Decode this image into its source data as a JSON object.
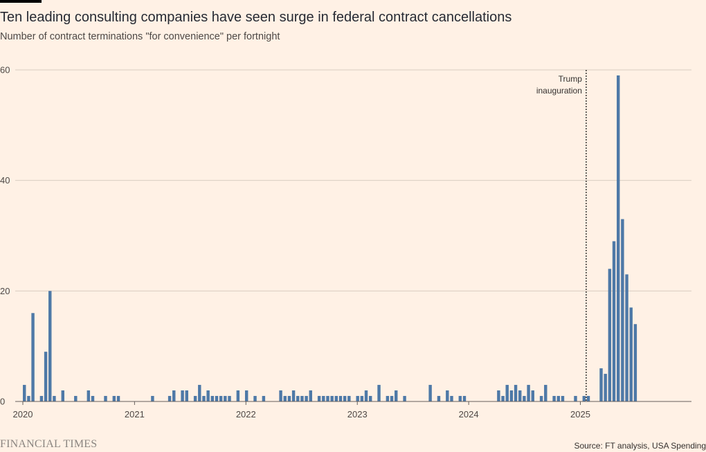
{
  "header": {
    "title": "Ten leading consulting companies have seen surge in federal contract cancellations",
    "subtitle": "Number of contract terminations \"for convenience\" per fortnight"
  },
  "footer": {
    "brand": "FINANCIAL TIMES",
    "source": "Source: FT analysis, USA Spending"
  },
  "colors": {
    "bar": "#4e79a7",
    "grid": "#d9cdc1",
    "axis": "#66605c",
    "background": "#fff1e5"
  },
  "chart_data": {
    "type": "bar",
    "title": "Ten leading consulting companies have seen surge in federal contract cancellations",
    "subtitle": "Number of contract terminations \"for convenience\" per fortnight",
    "xlabel": "",
    "ylabel": "",
    "x_unit": "fortnight",
    "x_start": "2020-01-01",
    "xlim": [
      "2020-01-01",
      "2025-12-31"
    ],
    "x_ticks": [
      "2020",
      "2021",
      "2022",
      "2023",
      "2024",
      "2025"
    ],
    "ylim": [
      0,
      60
    ],
    "y_ticks": [
      0,
      20,
      40,
      60
    ],
    "grid": true,
    "values": [
      3,
      1,
      16,
      0,
      1,
      9,
      20,
      1,
      0,
      2,
      0,
      0,
      1,
      0,
      0,
      2,
      1,
      0,
      0,
      1,
      0,
      1,
      1,
      0,
      0,
      0,
      0,
      0,
      0,
      0,
      1,
      0,
      0,
      0,
      1,
      2,
      0,
      2,
      2,
      0,
      1,
      3,
      1,
      2,
      1,
      1,
      1,
      1,
      1,
      0,
      2,
      0,
      2,
      0,
      1,
      0,
      1,
      0,
      0,
      0,
      2,
      1,
      1,
      2,
      1,
      1,
      1,
      2,
      0,
      1,
      1,
      1,
      1,
      1,
      1,
      1,
      1,
      0,
      1,
      1,
      2,
      1,
      0,
      3,
      0,
      1,
      1,
      2,
      0,
      1,
      0,
      0,
      0,
      0,
      0,
      3,
      0,
      1,
      0,
      2,
      1,
      0,
      1,
      1,
      0,
      0,
      0,
      0,
      0,
      0,
      0,
      2,
      1,
      3,
      2,
      3,
      2,
      1,
      3,
      2,
      0,
      1,
      3,
      0,
      1,
      1,
      1,
      0,
      0,
      1,
      0,
      1,
      1,
      0,
      0,
      6,
      5,
      24,
      29,
      59,
      33,
      23,
      17,
      14
    ],
    "annotations": [
      {
        "date": "2025-01-20",
        "text_lines": [
          "Trump",
          "inauguration"
        ]
      }
    ]
  }
}
